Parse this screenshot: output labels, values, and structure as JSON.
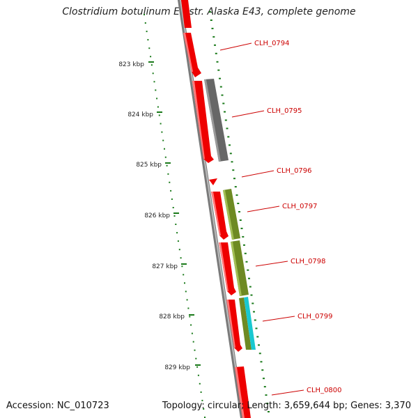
{
  "title": "Clostridium botulinum E3 str. Alaska E43, complete genome",
  "footer": {
    "accession": "Accession: NC_010723",
    "topology": "Topology: circular; Length: 3,659,644 bp; Genes: 3,370"
  },
  "scale_labels": [
    "823 kbp",
    "824 kbp",
    "825 kbp",
    "826 kbp",
    "827 kbp",
    "828 kbp",
    "829 kbp"
  ],
  "gene_labels": [
    "CLH_0794",
    "CLH_0795",
    "CLH_0796",
    "CLH_0797",
    "CLH_0798",
    "CLH_0799",
    "CLH_0800"
  ],
  "colors": {
    "cds": "#ee0000",
    "cog_gray": "#666666",
    "cog_olive": "#6e8a23",
    "cog_cyan": "#18c8d0",
    "backbone": "#777777",
    "ticks": "#1a7a1a",
    "label": "#cc0000"
  }
}
